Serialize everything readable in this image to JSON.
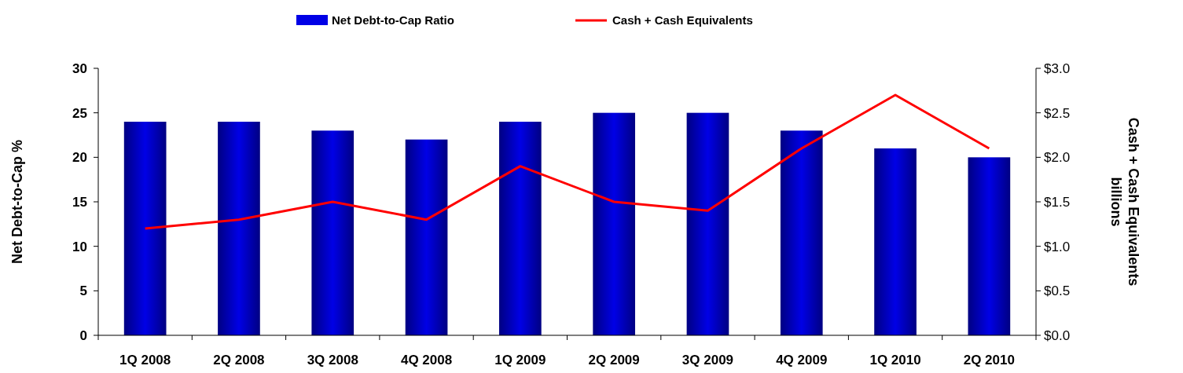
{
  "chart_data": {
    "type": "bar",
    "categories": [
      "1Q 2008",
      "2Q 2008",
      "3Q 2008",
      "4Q 2008",
      "1Q 2009",
      "2Q 2009",
      "3Q 2009",
      "4Q 2009",
      "1Q 2010",
      "2Q 2010"
    ],
    "series": [
      {
        "name": "Net Debt-to-Cap Ratio",
        "color": "#0000e6",
        "values": [
          24,
          24,
          23,
          22,
          24,
          25,
          25,
          23,
          21,
          20
        ]
      },
      {
        "name": "Cash + Cash Equivalents",
        "type": "line",
        "axis": "y2",
        "color": "#ff0000",
        "values": [
          1.2,
          1.3,
          1.5,
          1.3,
          1.9,
          1.5,
          1.4,
          2.1,
          2.7,
          2.1
        ]
      }
    ],
    "ylabel": "Net Debt-to-Cap %",
    "y2label": "Cash + Cash Equivalents\nbillions",
    "ylim": [
      0,
      30
    ],
    "yticks": [
      0,
      5,
      10,
      15,
      20,
      25,
      30
    ],
    "y2lim": [
      0,
      3
    ],
    "y2ticks": [
      {
        "value": 0,
        "label": "$0.0"
      },
      {
        "value": 0.5,
        "label": "$0.5"
      },
      {
        "value": 1,
        "label": "$1.0"
      },
      {
        "value": 1.5,
        "label": "$1.5"
      },
      {
        "value": 2,
        "label": "$2.0"
      },
      {
        "value": 2.5,
        "label": "$2.5"
      },
      {
        "value": 3,
        "label": "$3.0"
      }
    ],
    "legend": "top",
    "grid": false
  }
}
